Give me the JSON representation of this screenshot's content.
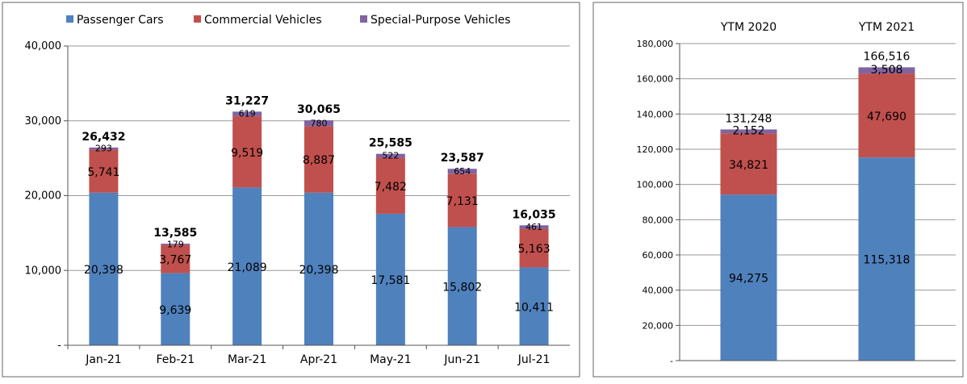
{
  "colors": {
    "passenger": "#4F81BD",
    "commercial": "#C0504D",
    "special": "#8064A2",
    "gridline": "#999999",
    "axis": "#555555",
    "frame": "#666666"
  },
  "legend": {
    "items": [
      {
        "label": "Passenger Cars"
      },
      {
        "label": "Commercial Vehicles"
      },
      {
        "label": "Special-Purpose Vehicles"
      }
    ]
  },
  "chart_data": [
    {
      "type": "bar",
      "stacked": true,
      "title": "",
      "xlabel": "",
      "ylabel": "",
      "categories": [
        "Jan-21",
        "Feb-21",
        "Mar-21",
        "Apr-21",
        "May-21",
        "Jun-21",
        "Jul-21"
      ],
      "series": [
        {
          "name": "Passenger Cars",
          "values": [
            20398,
            9639,
            21089,
            20398,
            17581,
            15802,
            10411
          ],
          "labels": [
            "20,398",
            "9,639",
            "21,089",
            "20,398",
            "17,581",
            "15,802",
            "10,411"
          ]
        },
        {
          "name": "Commercial Vehicles",
          "values": [
            5741,
            3767,
            9519,
            8887,
            7482,
            7131,
            5163
          ],
          "labels": [
            "5,741",
            "3,767",
            "9,519",
            "8,887",
            "7,482",
            "7,131",
            "5,163"
          ]
        },
        {
          "name": "Special-Purpose Vehicles",
          "values": [
            293,
            179,
            619,
            780,
            522,
            654,
            461
          ],
          "labels": [
            "293",
            "179",
            "619",
            "780",
            "522",
            "654",
            "461"
          ]
        }
      ],
      "totals": [
        26432,
        13585,
        31227,
        30065,
        25585,
        23587,
        16035
      ],
      "total_labels": [
        "26,432",
        "13,585",
        "31,227",
        "30,065",
        "25,585",
        "23,587",
        "16,035"
      ],
      "ylim": [
        0,
        40000
      ],
      "yticks": [
        0,
        10000,
        20000,
        30000,
        40000
      ],
      "ytick_labels": [
        "-",
        "10,000",
        "20,000",
        "30,000",
        "40,000"
      ],
      "grid": true,
      "legend_position": "top"
    },
    {
      "type": "bar",
      "stacked": true,
      "title": "",
      "xlabel": "",
      "ylabel": "",
      "categories": [
        "YTM 2020",
        "YTM 2021"
      ],
      "series": [
        {
          "name": "Passenger Cars",
          "values": [
            94275,
            115318
          ],
          "labels": [
            "94,275",
            "115,318"
          ]
        },
        {
          "name": "Commercial Vehicles",
          "values": [
            34821,
            47690
          ],
          "labels": [
            "34,821",
            "47,690"
          ]
        },
        {
          "name": "Special-Purpose Vehicles",
          "values": [
            2152,
            3508
          ],
          "labels": [
            "2,152",
            "3,508"
          ]
        }
      ],
      "totals": [
        131248,
        166516
      ],
      "total_labels": [
        "131,248",
        "166,516"
      ],
      "ylim": [
        0,
        180000
      ],
      "yticks": [
        0,
        20000,
        40000,
        60000,
        80000,
        100000,
        120000,
        140000,
        160000,
        180000
      ],
      "ytick_labels": [
        "-",
        "20,000",
        "40,000",
        "60,000",
        "80,000",
        "100,000",
        "120,000",
        "140,000",
        "160,000",
        "180,000"
      ],
      "grid": true,
      "category_axis_position": "top"
    }
  ]
}
